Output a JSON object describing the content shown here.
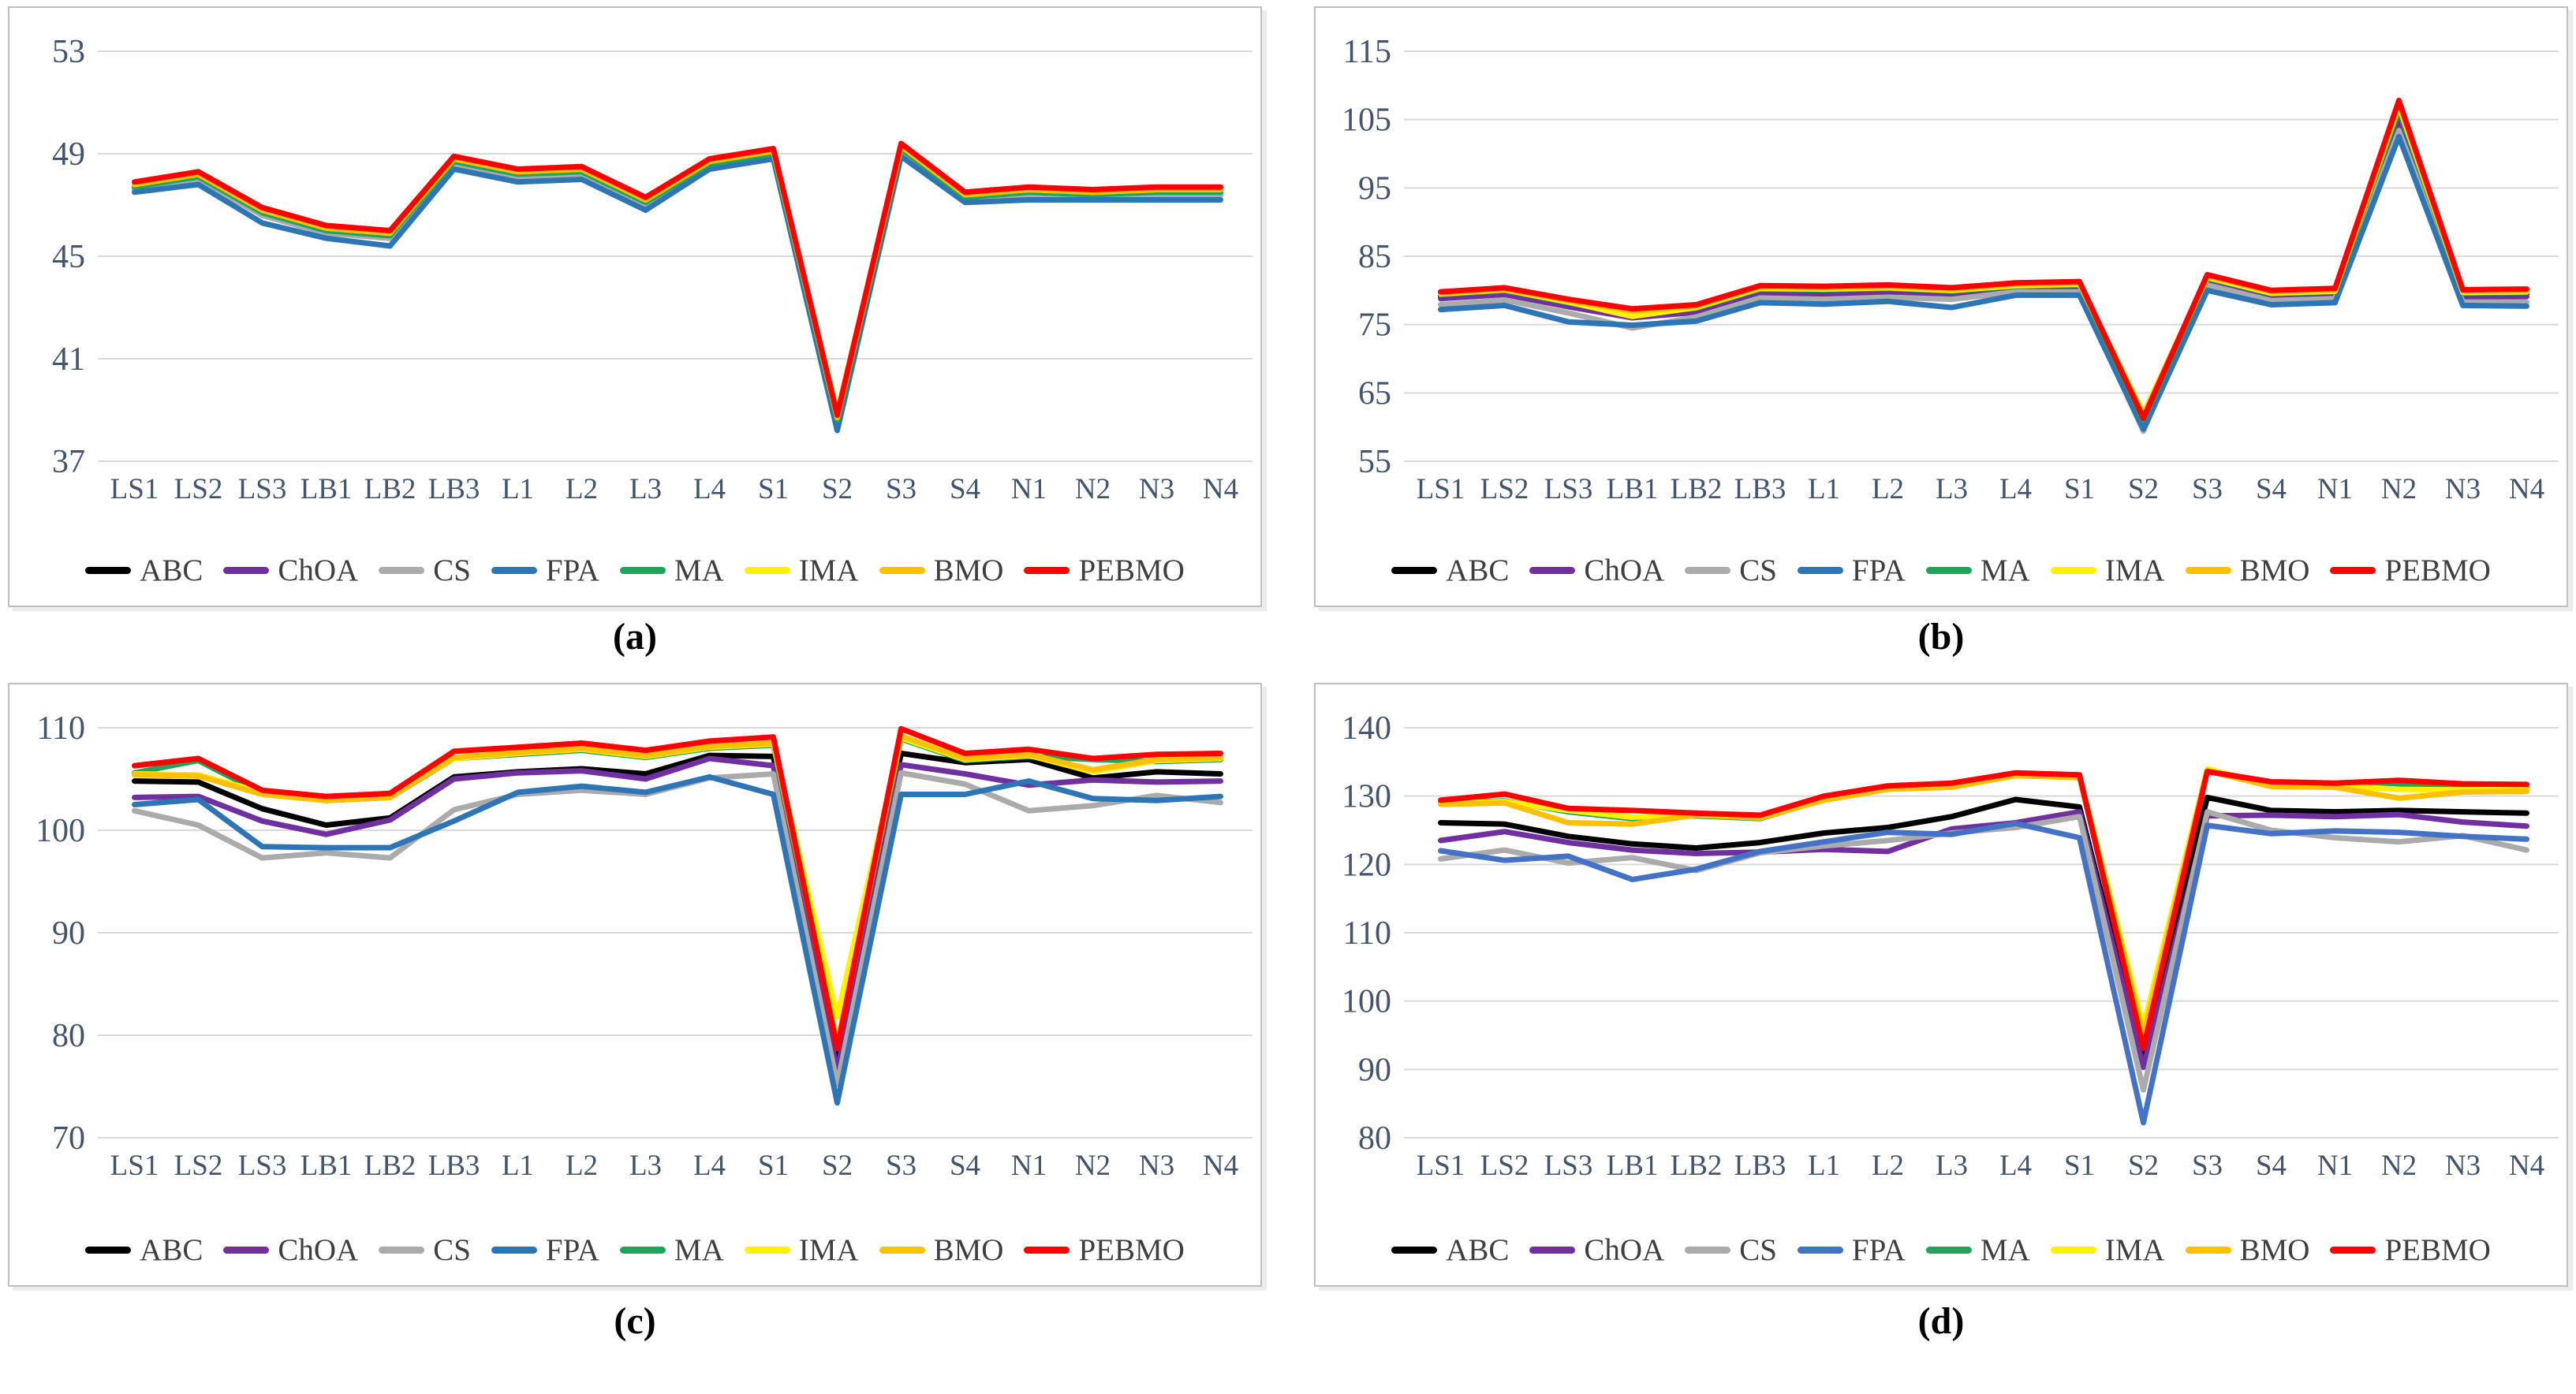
{
  "page": {
    "background": "#FFFFFF"
  },
  "legend": {
    "entries": [
      {
        "name": "ABC",
        "color": "#000000"
      },
      {
        "name": "ChOA",
        "color": "#7030A0"
      },
      {
        "name": "CS",
        "color": "#ABABAB"
      },
      {
        "name": "FPA",
        "color": "#2E75B6"
      },
      {
        "name": "MA",
        "color": "#1EA55B"
      },
      {
        "name": "IMA",
        "color": "#FFF100"
      },
      {
        "name": "BMO",
        "color": "#FFC000"
      },
      {
        "name": "PEBMO",
        "color": "#FF0000"
      }
    ]
  },
  "chart_data": [
    {
      "id": "a",
      "caption": "(a)",
      "type": "line",
      "grid": true,
      "legend_position": "bottom",
      "yticks": [
        53,
        49,
        45,
        41,
        37
      ],
      "ylim": [
        37,
        53
      ],
      "categories": [
        "LS1",
        "LS2",
        "LS3",
        "LB1",
        "LB2",
        "LB3",
        "L1",
        "L2",
        "L3",
        "L4",
        "S1",
        "S2",
        "S3",
        "S4",
        "N1",
        "N2",
        "N3",
        "N4"
      ],
      "series": [
        {
          "name": "ABC",
          "values": [
            47.7,
            48.1,
            46.7,
            46.0,
            45.8,
            48.7,
            48.2,
            48.3,
            47.1,
            48.6,
            49.0,
            38.6,
            49.2,
            47.3,
            47.5,
            47.4,
            47.5,
            47.5
          ]
        },
        {
          "name": "ChOA",
          "values": [
            47.7,
            48.0,
            46.6,
            45.9,
            45.8,
            48.7,
            48.1,
            48.2,
            47.0,
            48.6,
            49.0,
            38.5,
            49.1,
            47.3,
            47.4,
            47.4,
            47.4,
            47.4
          ]
        },
        {
          "name": "CS",
          "values": [
            47.6,
            48.0,
            46.6,
            45.9,
            45.7,
            48.6,
            48.1,
            48.2,
            47.0,
            48.5,
            48.9,
            38.4,
            49.1,
            47.2,
            47.4,
            47.3,
            47.4,
            47.4
          ]
        },
        {
          "name": "FPA",
          "values": [
            47.5,
            47.8,
            46.3,
            45.7,
            45.4,
            48.4,
            47.9,
            48.0,
            46.8,
            48.4,
            48.8,
            38.2,
            48.9,
            47.1,
            47.2,
            47.2,
            47.2,
            47.2
          ]
        },
        {
          "name": "MA",
          "values": [
            47.7,
            48.1,
            46.7,
            46.0,
            45.8,
            48.7,
            48.2,
            48.3,
            47.1,
            48.6,
            49.0,
            38.6,
            49.2,
            47.3,
            47.5,
            47.4,
            47.5,
            47.5
          ]
        },
        {
          "name": "IMA",
          "values": [
            47.8,
            48.2,
            46.8,
            46.1,
            45.9,
            48.8,
            48.3,
            48.4,
            47.2,
            48.7,
            49.1,
            38.9,
            49.3,
            47.4,
            47.6,
            47.5,
            47.6,
            47.6
          ]
        },
        {
          "name": "BMO",
          "values": [
            47.8,
            48.2,
            46.8,
            46.1,
            45.9,
            48.8,
            48.3,
            48.4,
            47.2,
            48.7,
            49.1,
            38.7,
            49.3,
            47.4,
            47.6,
            47.5,
            47.6,
            47.6
          ]
        },
        {
          "name": "PEBMO",
          "values": [
            47.9,
            48.3,
            46.9,
            46.2,
            46.0,
            48.9,
            48.4,
            48.5,
            47.3,
            48.8,
            49.2,
            38.8,
            49.4,
            47.5,
            47.7,
            47.6,
            47.7,
            47.7
          ]
        }
      ]
    },
    {
      "id": "b",
      "caption": "(b)",
      "type": "line",
      "grid": true,
      "legend_position": "bottom",
      "yticks": [
        115,
        105,
        95,
        85,
        75,
        65,
        55
      ],
      "ylim": [
        55,
        115
      ],
      "categories": [
        "LS1",
        "LS2",
        "LS3",
        "LB1",
        "LB2",
        "LB3",
        "L1",
        "L2",
        "L3",
        "L4",
        "S1",
        "S2",
        "S3",
        "S4",
        "N1",
        "N2",
        "N3",
        "N4"
      ],
      "series": [
        {
          "name": "ABC",
          "values": [
            79.2,
            79.8,
            78.0,
            76.4,
            77.2,
            80.0,
            79.9,
            80.1,
            79.7,
            80.4,
            80.6,
            60.9,
            81.6,
            79.3,
            79.6,
            105.9,
            79.4,
            79.5
          ]
        },
        {
          "name": "ChOA",
          "values": [
            78.8,
            79.4,
            77.6,
            76.0,
            76.8,
            79.6,
            79.5,
            79.7,
            79.3,
            80.1,
            80.3,
            60.7,
            81.3,
            79.0,
            79.3,
            104.7,
            79.0,
            79.1
          ]
        },
        {
          "name": "CS",
          "values": [
            77.9,
            78.6,
            76.7,
            74.5,
            76.1,
            78.9,
            78.7,
            79.0,
            78.7,
            79.8,
            79.8,
            59.4,
            80.8,
            78.5,
            78.8,
            103.4,
            78.3,
            78.3
          ]
        },
        {
          "name": "FPA",
          "values": [
            77.2,
            77.8,
            75.4,
            74.9,
            75.5,
            78.2,
            78.0,
            78.4,
            77.5,
            79.3,
            79.3,
            59.7,
            80.0,
            77.9,
            78.2,
            102.5,
            77.8,
            77.7
          ]
        },
        {
          "name": "MA",
          "values": [
            79.4,
            80.0,
            78.2,
            76.6,
            77.4,
            80.2,
            80.1,
            80.3,
            79.9,
            80.6,
            80.8,
            61.0,
            81.8,
            79.5,
            79.8,
            106.4,
            79.6,
            79.7
          ]
        },
        {
          "name": "IMA",
          "values": [
            79.5,
            80.1,
            78.3,
            76.2,
            77.5,
            80.3,
            80.2,
            80.4,
            80.0,
            80.7,
            80.9,
            62.0,
            81.9,
            79.6,
            79.9,
            107.0,
            79.7,
            79.8
          ]
        },
        {
          "name": "BMO",
          "values": [
            79.6,
            80.2,
            78.5,
            77.0,
            77.7,
            80.5,
            80.4,
            80.6,
            80.2,
            80.9,
            81.1,
            61.6,
            82.1,
            79.8,
            80.1,
            107.4,
            79.9,
            80.0
          ]
        },
        {
          "name": "PEBMO",
          "values": [
            79.8,
            80.4,
            78.7,
            77.3,
            77.9,
            80.7,
            80.6,
            80.8,
            80.4,
            81.1,
            81.3,
            61.3,
            82.3,
            80.0,
            80.3,
            107.8,
            80.1,
            80.2
          ]
        }
      ]
    },
    {
      "id": "c",
      "caption": "(c)",
      "type": "line",
      "grid": true,
      "legend_position": "bottom",
      "yticks": [
        110,
        100,
        90,
        80,
        70
      ],
      "ylim": [
        70,
        110
      ],
      "categories": [
        "LS1",
        "LS2",
        "LS3",
        "LB1",
        "LB2",
        "LB3",
        "L1",
        "L2",
        "L3",
        "L4",
        "S1",
        "S2",
        "S3",
        "S4",
        "N1",
        "N2",
        "N3",
        "N4"
      ],
      "series": [
        {
          "name": "ABC",
          "values": [
            104.8,
            104.7,
            102.1,
            100.5,
            101.2,
            105.2,
            105.7,
            106.0,
            105.5,
            107.3,
            107.2,
            77.6,
            107.5,
            106.6,
            106.9,
            105.1,
            105.7,
            105.5
          ]
        },
        {
          "name": "ChOA",
          "values": [
            103.2,
            103.3,
            100.9,
            99.6,
            101.0,
            105.0,
            105.6,
            105.8,
            105.0,
            107.0,
            106.3,
            76.5,
            106.4,
            105.5,
            104.4,
            104.9,
            104.7,
            104.8
          ]
        },
        {
          "name": "CS",
          "values": [
            101.9,
            100.5,
            97.3,
            97.8,
            97.3,
            102.0,
            103.5,
            103.9,
            103.5,
            105.1,
            105.5,
            75.2,
            105.6,
            104.5,
            101.9,
            102.4,
            103.4,
            102.7
          ]
        },
        {
          "name": "FPA",
          "values": [
            102.5,
            103.0,
            98.4,
            98.3,
            98.3,
            100.9,
            103.7,
            104.3,
            103.7,
            105.2,
            103.5,
            73.4,
            103.5,
            103.5,
            104.8,
            103.1,
            102.9,
            103.3
          ]
        },
        {
          "name": "MA",
          "values": [
            105.6,
            106.8,
            103.6,
            102.9,
            103.2,
            107.0,
            107.4,
            107.8,
            107.1,
            108.0,
            108.3,
            78.9,
            108.9,
            106.8,
            107.2,
            106.9,
            106.7,
            106.9
          ]
        },
        {
          "name": "IMA",
          "values": [
            105.5,
            105.4,
            103.7,
            103.0,
            103.3,
            107.0,
            107.5,
            107.9,
            107.2,
            108.1,
            108.4,
            81.8,
            109.0,
            106.9,
            107.3,
            105.7,
            106.8,
            107.0
          ]
        },
        {
          "name": "BMO",
          "values": [
            105.4,
            105.3,
            103.5,
            102.9,
            103.2,
            107.1,
            107.6,
            108.0,
            107.3,
            108.2,
            108.5,
            79.2,
            109.2,
            107.0,
            107.4,
            105.9,
            106.9,
            107.1
          ]
        },
        {
          "name": "PEBMO",
          "values": [
            106.3,
            107.0,
            103.9,
            103.3,
            103.6,
            107.7,
            108.1,
            108.5,
            107.8,
            108.7,
            109.1,
            78.7,
            109.9,
            107.5,
            107.9,
            107.0,
            107.4,
            107.5
          ]
        }
      ]
    },
    {
      "id": "d",
      "caption": "(d)",
      "type": "line",
      "grid": true,
      "legend_position": "bottom",
      "color_overrides": {
        "FPA": "#4472C4"
      },
      "yticks": [
        140,
        130,
        120,
        110,
        100,
        90,
        80
      ],
      "ylim": [
        80,
        140
      ],
      "categories": [
        "LS1",
        "LS2",
        "LS3",
        "LB1",
        "LB2",
        "LB3",
        "L1",
        "L2",
        "L3",
        "L4",
        "S1",
        "S2",
        "S3",
        "S4",
        "N1",
        "N2",
        "N3",
        "N4"
      ],
      "series": [
        {
          "name": "ABC",
          "values": [
            126.1,
            125.9,
            124.1,
            123.0,
            122.4,
            123.2,
            124.6,
            125.4,
            127.0,
            129.5,
            128.4,
            91.5,
            129.8,
            127.9,
            127.7,
            127.9,
            127.7,
            127.5
          ]
        },
        {
          "name": "ChOA",
          "values": [
            123.5,
            124.8,
            123.2,
            122.1,
            121.6,
            121.8,
            122.2,
            121.9,
            125.2,
            126.1,
            127.7,
            90.3,
            127.1,
            127.2,
            127.0,
            127.3,
            126.2,
            125.6
          ]
        },
        {
          "name": "CS",
          "values": [
            120.8,
            122.1,
            120.2,
            121.0,
            119.1,
            121.7,
            122.7,
            123.5,
            124.6,
            125.4,
            127.0,
            87.0,
            127.7,
            125.0,
            123.9,
            123.3,
            124.2,
            122.1
          ]
        },
        {
          "name": "FPA",
          "values": [
            122.0,
            120.6,
            121.2,
            117.8,
            119.3,
            121.9,
            123.3,
            124.7,
            124.4,
            126.0,
            123.9,
            82.2,
            125.7,
            124.5,
            124.9,
            124.7,
            124.1,
            123.7
          ]
        },
        {
          "name": "MA",
          "values": [
            129.0,
            129.3,
            127.7,
            126.7,
            127.1,
            126.7,
            129.5,
            131.1,
            131.4,
            133.1,
            132.8,
            94.3,
            133.8,
            131.7,
            131.6,
            131.6,
            131.3,
            131.3
          ]
        },
        {
          "name": "IMA",
          "values": [
            128.9,
            129.2,
            127.9,
            126.9,
            127.3,
            126.9,
            129.6,
            131.3,
            131.6,
            133.2,
            132.9,
            96.3,
            134.0,
            131.6,
            131.5,
            131.0,
            130.9,
            131.0
          ]
        },
        {
          "name": "BMO",
          "values": [
            128.8,
            129.0,
            126.1,
            125.9,
            127.2,
            126.8,
            129.4,
            131.0,
            131.3,
            133.0,
            132.7,
            95.0,
            133.7,
            131.4,
            131.3,
            129.7,
            130.6,
            130.7
          ]
        },
        {
          "name": "PEBMO",
          "values": [
            129.4,
            130.3,
            128.2,
            127.9,
            127.5,
            127.2,
            130.0,
            131.5,
            131.9,
            133.4,
            133.1,
            93.1,
            133.6,
            132.1,
            131.9,
            132.3,
            131.8,
            131.7
          ]
        }
      ]
    }
  ]
}
